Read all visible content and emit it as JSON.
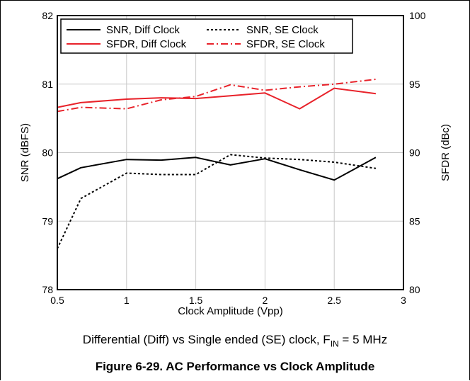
{
  "chart_data": {
    "type": "line",
    "title": "",
    "xlabel": "Clock Amplitude (Vpp)",
    "ylabel_left": "SNR (dBFS)",
    "ylabel_right": "SFDR (dBc)",
    "xlim": [
      0.5,
      3
    ],
    "ylim_left": [
      78,
      82
    ],
    "ylim_right": [
      80,
      100
    ],
    "x_ticks": [
      "0.5",
      "1",
      "1.5",
      "2",
      "2.5",
      "3"
    ],
    "y_ticks_left": [
      "78",
      "79",
      "80",
      "81",
      "82"
    ],
    "y_ticks_right": [
      "80",
      "85",
      "90",
      "95",
      "100"
    ],
    "grid": true,
    "legend_position": "top",
    "series": [
      {
        "name": "SNR, Diff Clock",
        "axis": "left",
        "color": "#000000",
        "style": "solid",
        "x": [
          0.5,
          0.67,
          1.0,
          1.25,
          1.5,
          1.75,
          2.0,
          2.25,
          2.5,
          2.8
        ],
        "y": [
          79.62,
          79.78,
          79.9,
          79.89,
          79.93,
          79.82,
          79.91,
          79.75,
          79.6,
          79.93
        ]
      },
      {
        "name": "SNR, SE Clock",
        "axis": "left",
        "color": "#000000",
        "style": "dashed",
        "x": [
          0.5,
          0.67,
          1.0,
          1.25,
          1.5,
          1.75,
          2.0,
          2.25,
          2.5,
          2.8
        ],
        "y": [
          78.6,
          79.33,
          79.7,
          79.68,
          79.68,
          79.97,
          79.92,
          79.9,
          79.86,
          79.77
        ]
      },
      {
        "name": "SFDR, Diff Clock",
        "axis": "right",
        "color": "#e8222a",
        "style": "solid",
        "x": [
          0.5,
          0.67,
          1.0,
          1.25,
          1.5,
          1.75,
          2.0,
          2.25,
          2.5,
          2.8
        ],
        "y": [
          93.3,
          93.65,
          93.9,
          94.0,
          93.95,
          94.15,
          94.35,
          93.2,
          94.7,
          94.3
        ]
      },
      {
        "name": "SFDR, SE Clock",
        "axis": "right",
        "color": "#e8222a",
        "style": "dashdot",
        "x": [
          0.5,
          0.67,
          1.0,
          1.25,
          1.5,
          1.75,
          2.0,
          2.25,
          2.5,
          2.8
        ],
        "y": [
          93.0,
          93.3,
          93.2,
          93.85,
          94.1,
          94.95,
          94.55,
          94.8,
          95.0,
          95.35
        ]
      }
    ]
  },
  "caption": {
    "prefix": "Differential (Diff) vs Single ended (SE) clock, F",
    "subscript": "IN",
    "suffix": " = 5 MHz"
  },
  "figure_title": "Figure 6-29. AC Performance vs Clock Amplitude"
}
